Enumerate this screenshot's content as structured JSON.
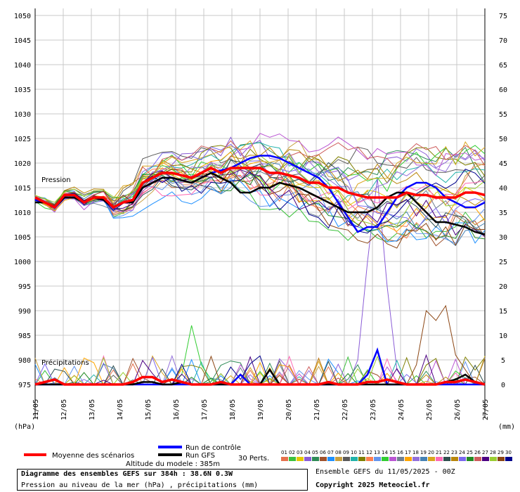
{
  "chart_data": {
    "type": "line",
    "title": "Diagramme des ensembles GEFS sur 384h : 38.6N 0.3W",
    "subtitle": "Pression au niveau de la mer (hPa) , précipitations (mm)",
    "ylabel_left": "(hPa)",
    "ylabel_right": "(mm)",
    "ylim_left": [
      975,
      1050
    ],
    "ylim_right": [
      0,
      75
    ],
    "yticks_left": [
      1050,
      1045,
      1040,
      1035,
      1030,
      1025,
      1020,
      1015,
      1010,
      1005,
      1000,
      995,
      990,
      985,
      980,
      975
    ],
    "yticks_right": [
      75,
      70,
      65,
      60,
      55,
      50,
      45,
      40,
      35,
      30,
      25,
      20,
      15,
      10,
      5,
      0
    ],
    "x_dates": [
      "11/05",
      "12/05",
      "13/05",
      "14/05",
      "15/05",
      "16/05",
      "17/05",
      "18/05",
      "19/05",
      "20/05",
      "21/05",
      "22/05",
      "23/05",
      "24/05",
      "25/05",
      "26/05",
      "27/05"
    ],
    "grid": true,
    "pressure_label": "Pression",
    "precip_label": "Précipitations",
    "series": [
      {
        "name": "Moyenne des scénarios",
        "color": "#ff0000",
        "pressure": [
          1013,
          1012,
          1011,
          1013.5,
          1013.5,
          1012,
          1013,
          1013,
          1011,
          1012,
          1012.5,
          1016,
          1017,
          1018,
          1018,
          1017.5,
          1017,
          1018,
          1019,
          1018,
          1019,
          1019,
          1019,
          1019,
          1018,
          1018,
          1017.5,
          1017,
          1016,
          1016,
          1015,
          1015,
          1014,
          1013.5,
          1013,
          1013,
          1013,
          1013,
          1014,
          1013.5,
          1013.5,
          1013,
          1013,
          1013,
          1014,
          1014,
          1013.5
        ],
        "precip": [
          0,
          0.5,
          1,
          0,
          0,
          0,
          0,
          0,
          0,
          0,
          0.5,
          1.5,
          1.5,
          0.5,
          1,
          0.5,
          0,
          0,
          0,
          0.5,
          0,
          0,
          0,
          0,
          0,
          0,
          0,
          0,
          0,
          0,
          0.5,
          0,
          0,
          0,
          0.5,
          0.5,
          1,
          0.5,
          0,
          0,
          0,
          0,
          0.5,
          0.5,
          1,
          0.5,
          0
        ]
      },
      {
        "name": "Run de contrôle",
        "color": "#0000ff",
        "pressure": [
          1012.5,
          1012,
          1011,
          1013,
          1013,
          1012,
          1013,
          1012.5,
          1011,
          1012,
          1012,
          1015,
          1016,
          1017,
          1017,
          1016.5,
          1016,
          1017,
          1018,
          1018.5,
          1019,
          1020,
          1021,
          1021.5,
          1021.5,
          1021,
          1020,
          1019,
          1018,
          1017,
          1015,
          1012,
          1009,
          1006,
          1007,
          1007,
          1010,
          1013,
          1015,
          1016,
          1016,
          1015,
          1013,
          1012,
          1011,
          1011,
          1012
        ],
        "precip": [
          0,
          0,
          0,
          0,
          0,
          0,
          0,
          0,
          0,
          0,
          0,
          0,
          0,
          0,
          0,
          0,
          0,
          0,
          0,
          0,
          0,
          2,
          0,
          0,
          0,
          0,
          0,
          0,
          0,
          0,
          0,
          0,
          0,
          0,
          2,
          7,
          0,
          0,
          0,
          0,
          0,
          0,
          0,
          0,
          0,
          0,
          0
        ]
      },
      {
        "name": "Run GFS",
        "color": "#000000",
        "pressure": [
          1012,
          1012,
          1011,
          1013,
          1013,
          1012,
          1013,
          1012.5,
          1011,
          1012,
          1012,
          1015,
          1016,
          1017,
          1017,
          1016.5,
          1016,
          1017,
          1018,
          1017,
          1016,
          1014,
          1014,
          1015,
          1015,
          1016,
          1015.5,
          1015,
          1014,
          1013,
          1012,
          1011,
          1010,
          1010,
          1010,
          1011,
          1013,
          1014,
          1014,
          1012,
          1010,
          1008,
          1008,
          1007.5,
          1007,
          1006,
          1005.5
        ],
        "precip": [
          0,
          0,
          0,
          0,
          0,
          0,
          0,
          0,
          0,
          0,
          0,
          0.5,
          0.5,
          0,
          0,
          0.5,
          0,
          0,
          0,
          0,
          0,
          0,
          0,
          0,
          3,
          0,
          0,
          0,
          0,
          0,
          0,
          0,
          0,
          0,
          0,
          0,
          0,
          0,
          0,
          0,
          0,
          0,
          0.5,
          1,
          2,
          0.5,
          0
        ]
      }
    ],
    "members_label": "30 Perts.",
    "member_ids": [
      "01",
      "02",
      "03",
      "04",
      "05",
      "06",
      "07",
      "08",
      "09",
      "10",
      "11",
      "12",
      "13",
      "14",
      "15",
      "16",
      "17",
      "18",
      "19",
      "20",
      "21",
      "22",
      "23",
      "24",
      "25",
      "26",
      "27",
      "28",
      "29",
      "30"
    ],
    "member_colors": [
      "#e6724d",
      "#3cc13c",
      "#e6c800",
      "#8a5cd6",
      "#2e8b57",
      "#a0522d",
      "#1e90ff",
      "#c8a040",
      "#5a5a5a",
      "#20b2aa",
      "#808000",
      "#ff7f50",
      "#6495ed",
      "#32cd32",
      "#ba55d3",
      "#708090",
      "#ffa500",
      "#9370db",
      "#4682b4",
      "#daa520",
      "#ff69b4",
      "#2f4f4f",
      "#b8860b",
      "#7b68ee",
      "#228b22",
      "#cd5c5c",
      "#4b0082",
      "#9acd32",
      "#8b4513",
      "#00008b"
    ]
  },
  "legend": {
    "mean": "Moyenne des scénarios",
    "control": "Run de contrôle",
    "gfs": "Run GFS"
  },
  "footer": {
    "altitude": "Altitude du modele : 385m",
    "title": "Diagramme des ensembles GEFS sur 384h : 38.6N 0.3W",
    "subtitle": "Pression au niveau de la mer (hPa) , précipitations (mm)",
    "ensemble": "Ensemble GEFS du 11/05/2025 - 00Z",
    "copyright": "Copyright 2025 Meteociel.fr"
  }
}
